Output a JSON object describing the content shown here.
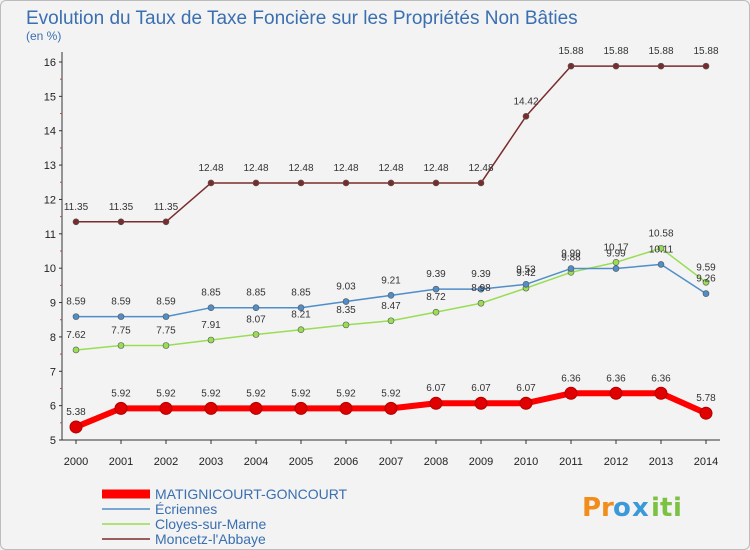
{
  "chart_data": {
    "type": "line",
    "title": "Evolution du Taux de Taxe Foncière sur les Propriétés Non Bâties",
    "subtitle": "(en %)",
    "x": [
      "2000",
      "2001",
      "2002",
      "2003",
      "2004",
      "2005",
      "2006",
      "2007",
      "2008",
      "2009",
      "2010",
      "2011",
      "2012",
      "2013",
      "2014"
    ],
    "y_ticks": [
      "5",
      "6",
      "7",
      "8",
      "9",
      "10",
      "11",
      "12",
      "13",
      "14",
      "15",
      "16"
    ],
    "ylim": [
      5,
      16
    ],
    "grid": false,
    "legend_position": "bottom-left",
    "series": [
      {
        "name": "MATIGNICOURT-GONCOURT",
        "color": "#ff0000",
        "values": [
          5.38,
          5.92,
          5.92,
          5.92,
          5.92,
          5.92,
          5.92,
          5.92,
          6.07,
          6.07,
          6.07,
          6.36,
          6.36,
          6.36,
          5.78
        ],
        "labels": [
          "5.38",
          "5.92",
          "5.92",
          "5.92",
          "5.92",
          "5.92",
          "5.92",
          "5.92",
          "6.07",
          "6.07",
          "6.07",
          "6.36",
          "6.36",
          "6.36",
          "5.78"
        ]
      },
      {
        "name": "Écriennes",
        "color": "#4f8ec9",
        "values": [
          8.59,
          8.59,
          8.59,
          8.85,
          8.85,
          8.85,
          9.03,
          9.21,
          9.39,
          9.39,
          9.53,
          9.99,
          9.99,
          10.11,
          9.26
        ],
        "labels": [
          "8.59",
          "8.59",
          "8.59",
          "8.85",
          "8.85",
          "8.85",
          "9.03",
          "9.21",
          "9.39",
          "9.39",
          "9.53",
          "9.99",
          "9.99",
          "10.11",
          "9.26"
        ]
      },
      {
        "name": "Cloyes-sur-Marne",
        "color": "#99dd55",
        "values": [
          7.62,
          7.75,
          7.75,
          7.91,
          8.07,
          8.21,
          8.35,
          8.47,
          8.72,
          8.98,
          9.42,
          9.88,
          10.17,
          10.58,
          9.59
        ],
        "labels": [
          "7.62",
          "7.75",
          "7.75",
          "7.91",
          "8.07",
          "8.21",
          "8.35",
          "8.47",
          "8.72",
          "8.98",
          "9.42",
          "9.88",
          "10.17",
          "10.58",
          "9.59"
        ]
      },
      {
        "name": "Moncetz-l'Abbaye",
        "color": "#7a2c2c",
        "values": [
          11.35,
          11.35,
          11.35,
          12.48,
          12.48,
          12.48,
          12.48,
          12.48,
          12.48,
          12.48,
          14.42,
          15.88,
          15.88,
          15.88,
          15.88
        ],
        "labels": [
          "11.35",
          "11.35",
          "11.35",
          "12.48",
          "12.48",
          "12.48",
          "12.48",
          "12.48",
          "12.48",
          "12.48",
          "14.42",
          "15.88",
          "15.88",
          "15.88",
          "15.88"
        ]
      }
    ]
  },
  "logo": {
    "text": "Proxiti"
  }
}
